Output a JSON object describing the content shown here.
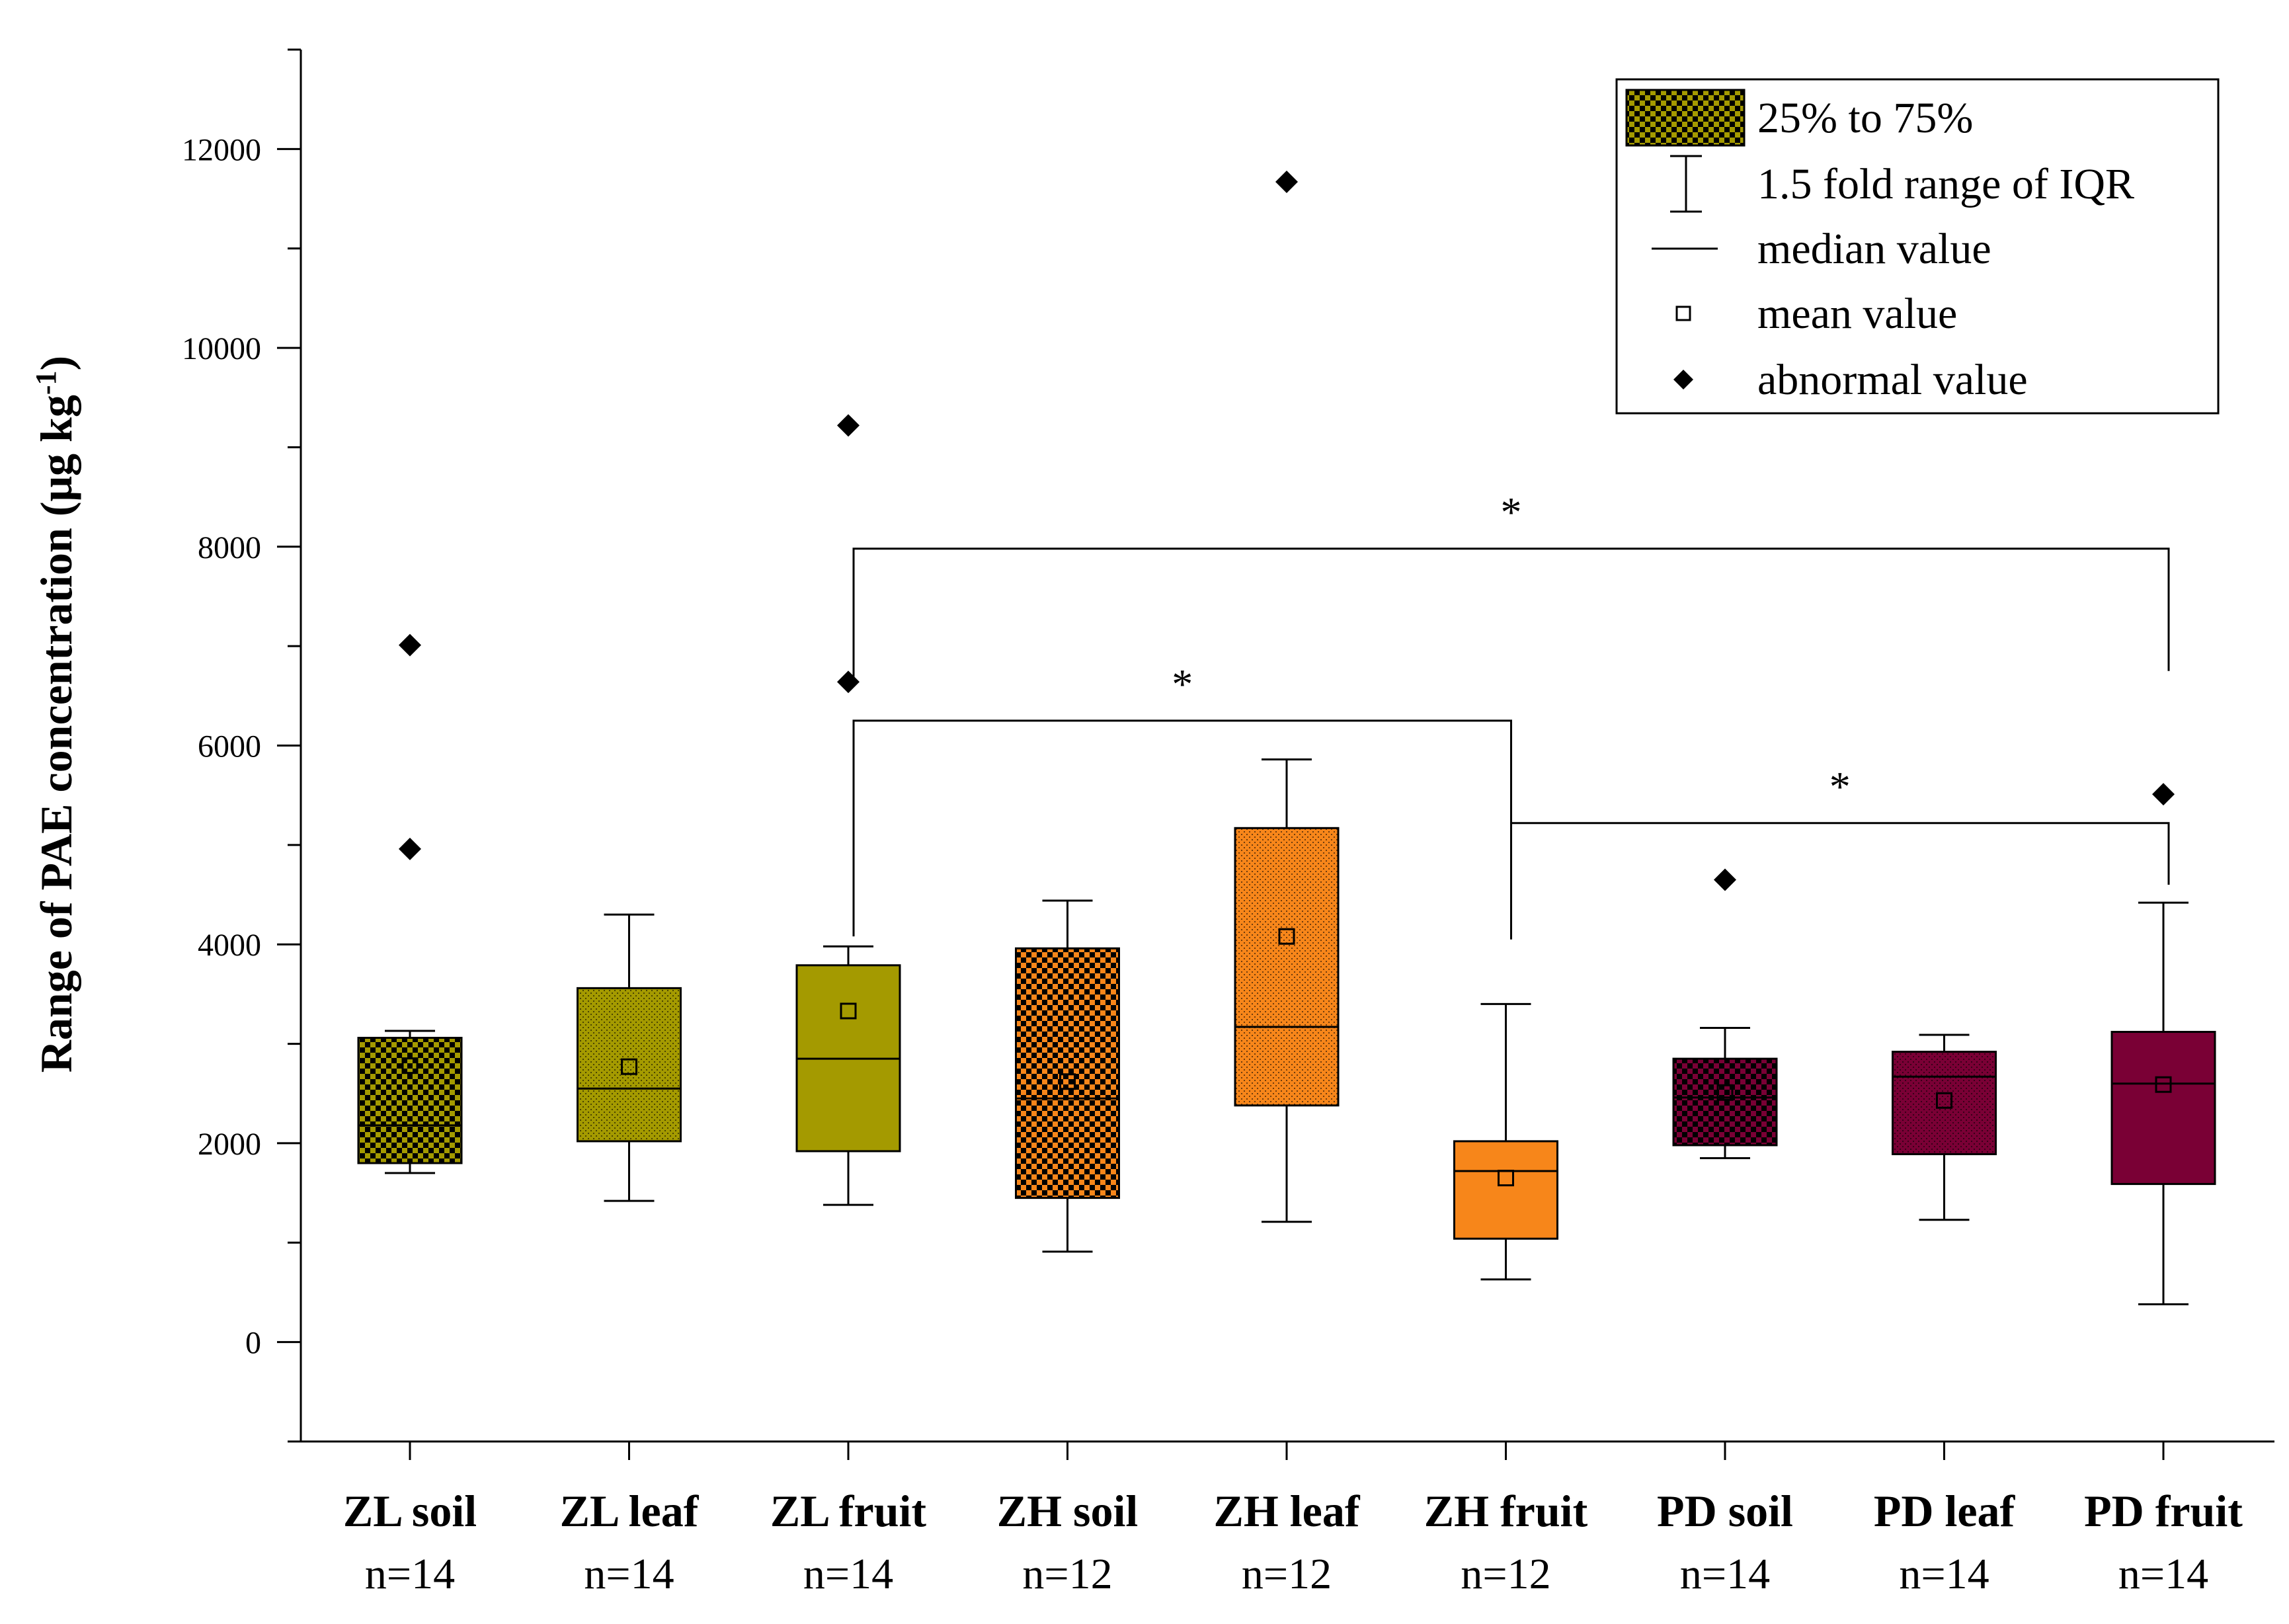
{
  "chart_data": {
    "type": "box",
    "title": "",
    "ylabel": "Range of PAE concentration (μg kg",
    "ylabel_sup": "-1",
    "ylabel_close": ")",
    "ylim": [
      -1000,
      13000
    ],
    "yticks": [
      0,
      2000,
      4000,
      6000,
      8000,
      10000,
      12000
    ],
    "categories": [
      {
        "name": "ZL soil",
        "n": "n=14",
        "color": "#a49a00",
        "pattern": "checker"
      },
      {
        "name": "ZL leaf",
        "n": "n=14",
        "color": "#a49a00",
        "pattern": "dots"
      },
      {
        "name": "ZL fruit",
        "n": "n=14",
        "color": "#a49a00",
        "pattern": "solid"
      },
      {
        "name": "ZH soil",
        "n": "n=12",
        "color": "#f7861a",
        "pattern": "checker"
      },
      {
        "name": "ZH leaf",
        "n": "n=12",
        "color": "#f7861a",
        "pattern": "dots"
      },
      {
        "name": "ZH fruit",
        "n": "n=12",
        "color": "#f7861a",
        "pattern": "solid"
      },
      {
        "name": "PD soil",
        "n": "n=14",
        "color": "#7a0035",
        "pattern": "checker"
      },
      {
        "name": "PD leaf",
        "n": "n=14",
        "color": "#7a0035",
        "pattern": "dots"
      },
      {
        "name": "PD fruit",
        "n": "n=14",
        "color": "#7a0035",
        "pattern": "solid"
      }
    ],
    "boxes": [
      {
        "q1": 1800,
        "q3": 3060,
        "median": 2180,
        "mean": 2780,
        "whisker_low": 1700,
        "whisker_high": 3130,
        "outliers": [
          4960,
          7010
        ]
      },
      {
        "q1": 2020,
        "q3": 3560,
        "median": 2550,
        "mean": 2770,
        "whisker_low": 1420,
        "whisker_high": 4300,
        "outliers": []
      },
      {
        "q1": 1920,
        "q3": 3790,
        "median": 2850,
        "mean": 3330,
        "whisker_low": 1380,
        "whisker_high": 3980,
        "outliers": [
          6640,
          9220
        ]
      },
      {
        "q1": 1450,
        "q3": 3960,
        "median": 2450,
        "mean": 2620,
        "whisker_low": 910,
        "whisker_high": 4440,
        "outliers": []
      },
      {
        "q1": 2380,
        "q3": 5170,
        "median": 3170,
        "mean": 4080,
        "whisker_low": 1210,
        "whisker_high": 5860,
        "outliers": [
          11670
        ]
      },
      {
        "q1": 1040,
        "q3": 2020,
        "median": 1720,
        "mean": 1650,
        "whisker_low": 630,
        "whisker_high": 3400,
        "outliers": []
      },
      {
        "q1": 1980,
        "q3": 2850,
        "median": 2460,
        "mean": 2510,
        "whisker_low": 1850,
        "whisker_high": 3160,
        "outliers": [
          4650
        ]
      },
      {
        "q1": 1890,
        "q3": 2920,
        "median": 2670,
        "mean": 2430,
        "whisker_low": 1230,
        "whisker_high": 3090,
        "outliers": []
      },
      {
        "q1": 1590,
        "q3": 3120,
        "median": 2600,
        "mean": 2590,
        "whisker_low": 380,
        "whisker_high": 4420,
        "outliers": [
          5510
        ]
      }
    ],
    "significance": [
      {
        "from": 2,
        "to": 8,
        "y": 7980,
        "drop_from_to": 6650,
        "drop_to_to": 6750,
        "label": "*"
      },
      {
        "from": 2,
        "to": 5,
        "y": 6250,
        "drop_from_to": 4080,
        "drop_to_to": 4050,
        "label": "*"
      },
      {
        "from": 5,
        "to": 8,
        "y": 5220,
        "drop_from_to": 4560,
        "drop_to_to": 4600,
        "label": "*"
      }
    ],
    "legend": {
      "position": "top-right",
      "items": [
        {
          "key": "box",
          "label": "25% to 75%"
        },
        {
          "key": "whisker",
          "label": "1.5 fold range of IQR"
        },
        {
          "key": "median",
          "label": "median value"
        },
        {
          "key": "mean",
          "label": "mean value"
        },
        {
          "key": "outlier",
          "label": "abnormal value"
        }
      ]
    }
  }
}
